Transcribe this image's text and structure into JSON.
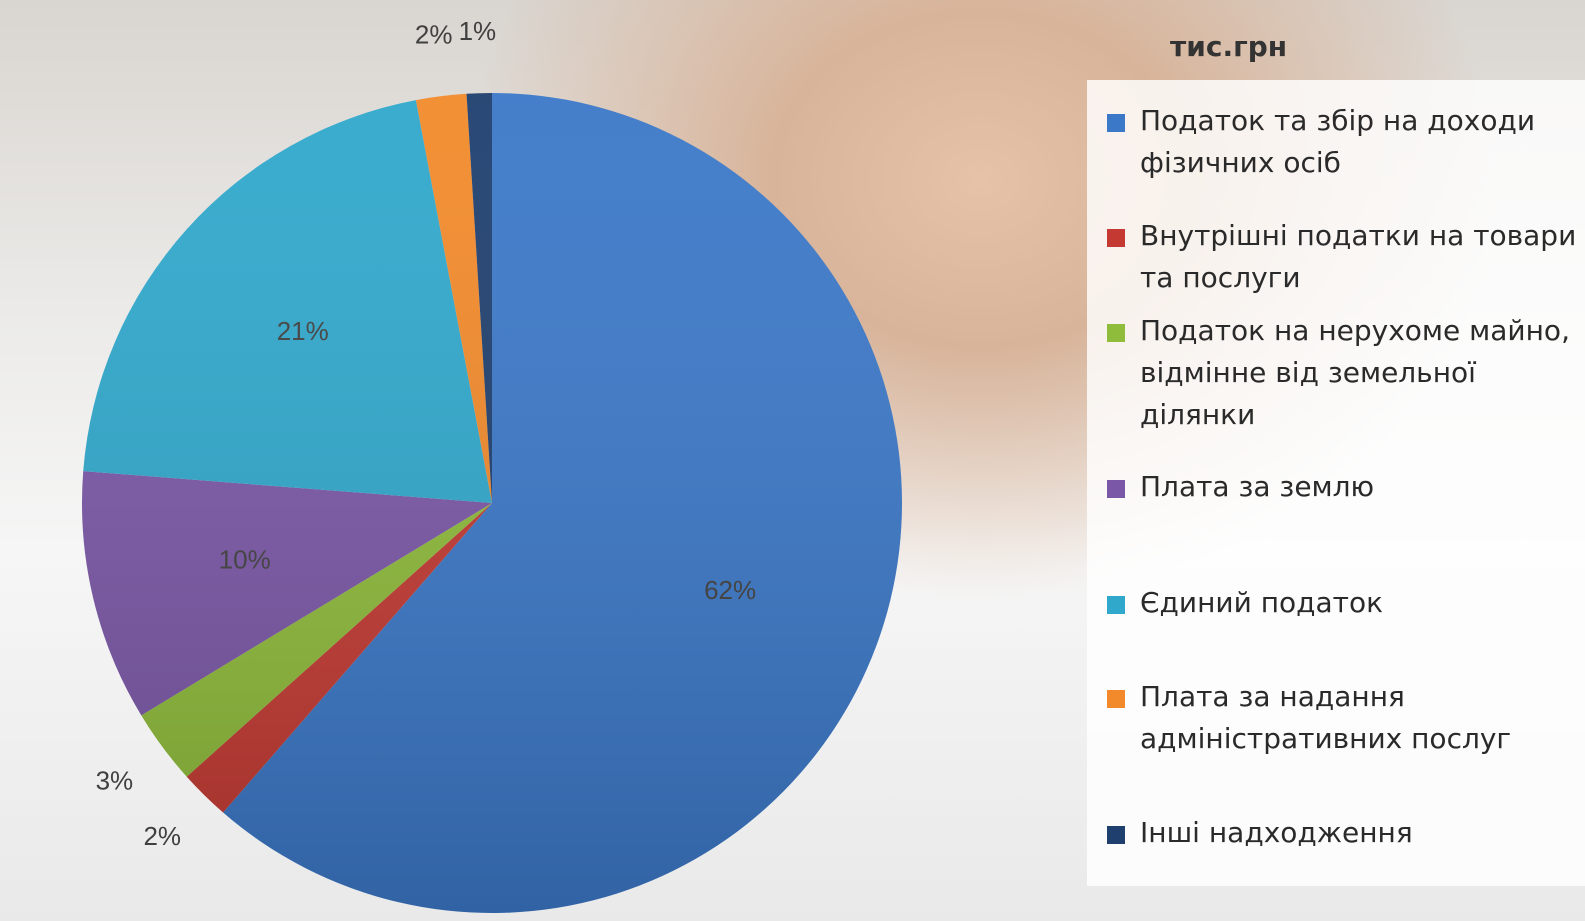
{
  "chart_data": {
    "type": "pie",
    "title": "тис.грн",
    "categories": [
      "Податок та збір на доходи фізичних осіб",
      "Внутрішні податки на товари та послуги",
      "Податок на нерухоме майно, відмінне від земельної ділянки",
      "Плата за землю",
      "Єдиний податок",
      "Плата за надання адміністративних послуг",
      "Інші надходження"
    ],
    "values": [
      62,
      2,
      3,
      10,
      21,
      2,
      1
    ],
    "value_labels": [
      "62%",
      "2%",
      "3%",
      "10%",
      "21%",
      "2%",
      "1%"
    ],
    "colors": [
      "#3b78c8",
      "#c43a33",
      "#8fbc3b",
      "#7b57a7",
      "#30a8cc",
      "#f28a2b",
      "#1f3f6e"
    ]
  }
}
